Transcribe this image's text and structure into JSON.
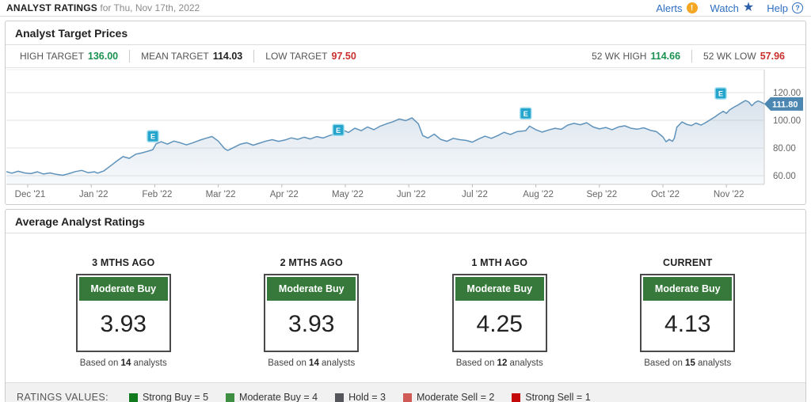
{
  "header": {
    "title": "ANALYST RATINGS",
    "subtitle": "for Thu, Nov 17th, 2022",
    "alerts_label": "Alerts",
    "watch_label": "Watch",
    "help_label": "Help"
  },
  "target_prices": {
    "section_title": "Analyst Target Prices",
    "high_label": "HIGH TARGET",
    "high_value": "136.00",
    "mean_label": "MEAN TARGET",
    "mean_value": "114.03",
    "low_label": "LOW TARGET",
    "low_value": "97.50",
    "wk_high_label": "52 WK HIGH",
    "wk_high_value": "114.66",
    "wk_low_label": "52 WK LOW",
    "wk_low_value": "57.96"
  },
  "chart_data": {
    "type": "area",
    "title": "Price history Dec 2021 - Nov 2022 with earnings markers",
    "x_tick_labels": [
      "Dec '21",
      "Jan '22",
      "Feb '22",
      "Mar '22",
      "Apr '22",
      "May '22",
      "Jun '22",
      "Jul '22",
      "Aug '22",
      "Sep '22",
      "Oct '22",
      "Nov '22"
    ],
    "y_ticks": [
      120,
      100,
      80,
      60
    ],
    "y_tick_labels": [
      "120.00",
      "100.00",
      "80.00",
      "60.00"
    ],
    "ylim": [
      54,
      136
    ],
    "grid": true,
    "last_price": 111.8,
    "last_price_label": "111.80",
    "line_color": "#5f93bb",
    "marker_color": "#25a4cc",
    "badge_color": "#4c87b2",
    "markers": [
      {
        "label": "E",
        "x": 1.97,
        "y": 88.5
      },
      {
        "label": "E",
        "x": 4.89,
        "y": 93.0
      },
      {
        "label": "E",
        "x": 7.84,
        "y": 105.0
      },
      {
        "label": "E",
        "x": 10.91,
        "y": 119.4
      }
    ],
    "series": [
      {
        "name": "price",
        "points": [
          [
            -0.34,
            63
          ],
          [
            -0.25,
            61.8
          ],
          [
            -0.15,
            63.2
          ],
          [
            -0.05,
            62
          ],
          [
            0.05,
            61.5
          ],
          [
            0.15,
            62.8
          ],
          [
            0.25,
            61.2
          ],
          [
            0.35,
            62
          ],
          [
            0.45,
            61
          ],
          [
            0.55,
            60.3
          ],
          [
            0.65,
            61.5
          ],
          [
            0.75,
            63
          ],
          [
            0.85,
            63.8
          ],
          [
            0.95,
            62.2
          ],
          [
            1.05,
            62.8
          ],
          [
            1.1,
            61.8
          ],
          [
            1.2,
            63.5
          ],
          [
            1.3,
            67
          ],
          [
            1.4,
            70.5
          ],
          [
            1.5,
            73.8
          ],
          [
            1.6,
            72.5
          ],
          [
            1.7,
            75.5
          ],
          [
            1.8,
            76.5
          ],
          [
            1.9,
            77.8
          ],
          [
            1.97,
            78.8
          ],
          [
            2.02,
            83
          ],
          [
            2.1,
            84.5
          ],
          [
            2.2,
            82.8
          ],
          [
            2.3,
            85
          ],
          [
            2.4,
            83.8
          ],
          [
            2.5,
            82.2
          ],
          [
            2.6,
            83.8
          ],
          [
            2.7,
            85.5
          ],
          [
            2.8,
            87
          ],
          [
            2.9,
            88.3
          ],
          [
            3.0,
            85
          ],
          [
            3.1,
            79.5
          ],
          [
            3.15,
            78.2
          ],
          [
            3.25,
            80.5
          ],
          [
            3.35,
            82.8
          ],
          [
            3.45,
            83.8
          ],
          [
            3.55,
            82
          ],
          [
            3.65,
            83.5
          ],
          [
            3.75,
            85
          ],
          [
            3.85,
            86
          ],
          [
            3.95,
            84.8
          ],
          [
            4.05,
            85.8
          ],
          [
            4.15,
            87.3
          ],
          [
            4.25,
            86.2
          ],
          [
            4.35,
            87.8
          ],
          [
            4.45,
            86.5
          ],
          [
            4.55,
            88.2
          ],
          [
            4.65,
            87.2
          ],
          [
            4.75,
            89
          ],
          [
            4.89,
            90.8
          ],
          [
            4.95,
            93.2
          ],
          [
            5.05,
            91.2
          ],
          [
            5.15,
            94.3
          ],
          [
            5.25,
            92.5
          ],
          [
            5.35,
            95.2
          ],
          [
            5.45,
            93.2
          ],
          [
            5.55,
            95.8
          ],
          [
            5.65,
            97.5
          ],
          [
            5.75,
            99
          ],
          [
            5.85,
            101
          ],
          [
            5.95,
            99.8
          ],
          [
            6.05,
            101.8
          ],
          [
            6.15,
            97.5
          ],
          [
            6.22,
            89
          ],
          [
            6.3,
            87.2
          ],
          [
            6.4,
            90
          ],
          [
            6.5,
            86.2
          ],
          [
            6.6,
            84.8
          ],
          [
            6.7,
            87
          ],
          [
            6.8,
            86
          ],
          [
            6.9,
            85.5
          ],
          [
            7.0,
            84.2
          ],
          [
            7.1,
            86.5
          ],
          [
            7.2,
            88.5
          ],
          [
            7.3,
            87
          ],
          [
            7.4,
            89
          ],
          [
            7.5,
            91.3
          ],
          [
            7.6,
            89.8
          ],
          [
            7.7,
            91.8
          ],
          [
            7.84,
            92.5
          ],
          [
            7.9,
            95.8
          ],
          [
            8.0,
            93.2
          ],
          [
            8.1,
            91.5
          ],
          [
            8.2,
            93
          ],
          [
            8.3,
            94.2
          ],
          [
            8.4,
            93.5
          ],
          [
            8.5,
            96.5
          ],
          [
            8.6,
            97.8
          ],
          [
            8.7,
            96.8
          ],
          [
            8.8,
            98.2
          ],
          [
            8.9,
            95.2
          ],
          [
            9.0,
            93.8
          ],
          [
            9.1,
            94.8
          ],
          [
            9.2,
            93.2
          ],
          [
            9.3,
            95.2
          ],
          [
            9.4,
            96
          ],
          [
            9.5,
            94.2
          ],
          [
            9.6,
            93.6
          ],
          [
            9.7,
            94.6
          ],
          [
            9.8,
            92.8
          ],
          [
            9.9,
            91.8
          ],
          [
            10.0,
            88
          ],
          [
            10.05,
            84.5
          ],
          [
            10.1,
            86.2
          ],
          [
            10.15,
            84.8
          ],
          [
            10.18,
            87
          ],
          [
            10.22,
            95
          ],
          [
            10.3,
            98.8
          ],
          [
            10.38,
            97
          ],
          [
            10.45,
            96.2
          ],
          [
            10.52,
            98
          ],
          [
            10.6,
            96.5
          ],
          [
            10.68,
            98.5
          ],
          [
            10.75,
            100.5
          ],
          [
            10.82,
            102.5
          ],
          [
            10.88,
            104.5
          ],
          [
            10.95,
            106.5
          ],
          [
            11.0,
            105
          ],
          [
            11.05,
            107.5
          ],
          [
            11.12,
            109.5
          ],
          [
            11.18,
            111
          ],
          [
            11.25,
            113
          ],
          [
            11.3,
            114.3
          ],
          [
            11.35,
            113.2
          ],
          [
            11.4,
            110.5
          ],
          [
            11.45,
            112.8
          ],
          [
            11.5,
            114
          ],
          [
            11.55,
            113
          ],
          [
            11.6,
            111.8
          ]
        ]
      }
    ]
  },
  "ratings": {
    "section_title": "Average Analyst Ratings",
    "columns": [
      {
        "period": "3 MTHS AGO",
        "rating": "Moderate Buy",
        "value": "3.93",
        "based_prefix": "Based on ",
        "count": "14",
        "based_suffix": " analysts"
      },
      {
        "period": "2 MTHS AGO",
        "rating": "Moderate Buy",
        "value": "3.93",
        "based_prefix": "Based on ",
        "count": "14",
        "based_suffix": " analysts"
      },
      {
        "period": "1 MTH AGO",
        "rating": "Moderate Buy",
        "value": "4.25",
        "based_prefix": "Based on ",
        "count": "12",
        "based_suffix": " analysts"
      },
      {
        "period": "CURRENT",
        "rating": "Moderate Buy",
        "value": "4.13",
        "based_prefix": "Based on ",
        "count": "15",
        "based_suffix": " analysts"
      }
    ],
    "legend_title": "RATINGS VALUES:",
    "legend": [
      {
        "label": "Strong Buy = 5",
        "color": "#117a1e"
      },
      {
        "label": "Moderate Buy = 4",
        "color": "#3f8f43"
      },
      {
        "label": "Hold = 3",
        "color": "#54565b"
      },
      {
        "label": "Moderate Sell = 2",
        "color": "#d05a55"
      },
      {
        "label": "Strong Sell = 1",
        "color": "#c40a0a"
      }
    ]
  }
}
